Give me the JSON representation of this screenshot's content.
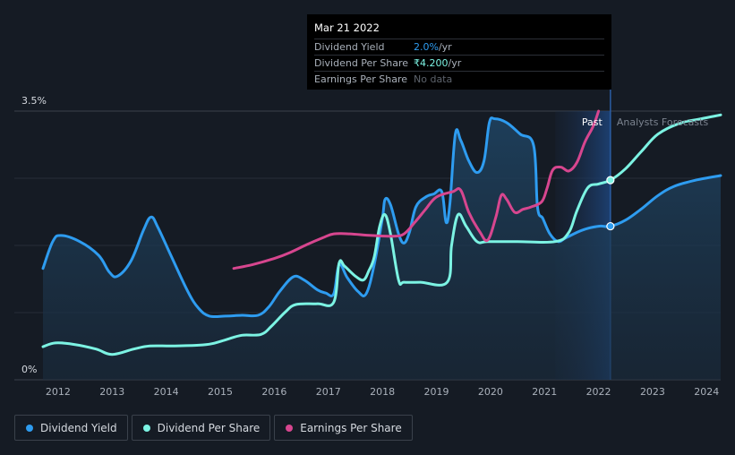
{
  "tooltip": {
    "date": "Mar 21 2022",
    "rows": [
      {
        "label": "Dividend Yield",
        "value": "2.0%",
        "unit": " /yr"
      },
      {
        "label": "Dividend Per Share",
        "value": "₹4.200",
        "unit": " /yr"
      },
      {
        "label": "Earnings Per Share",
        "value": "No data",
        "unit": ""
      }
    ]
  },
  "regions": {
    "past": "Past",
    "forecast": "Analysts Forecasts"
  },
  "colors": {
    "background": "#151b24",
    "dividend_yield": "#2e9cf0",
    "dividend_per_share": "#7cf3e3",
    "earnings_per_share": "#d7468f"
  },
  "legend": [
    {
      "label": "Dividend Yield",
      "color": "#2e9cf0"
    },
    {
      "label": "Dividend Per Share",
      "color": "#7cf3e3"
    },
    {
      "label": "Earnings Per Share",
      "color": "#d7468f"
    }
  ],
  "chart_data": {
    "type": "line",
    "ytick_labels": [
      "0%",
      "3.5%"
    ],
    "ylim": [
      0,
      3.5
    ],
    "xlim": [
      2011.72,
      2024.26
    ],
    "xticks": [
      2012,
      2013,
      2014,
      2015,
      2016,
      2017,
      2018,
      2019,
      2020,
      2021,
      2022,
      2023,
      2024
    ],
    "past_end": 2022.22,
    "forecast_shade_start": 2021.2,
    "grid": true,
    "series": [
      {
        "name": "Dividend Yield",
        "unit": "%",
        "filled": true,
        "points": [
          [
            2011.72,
            1.45
          ],
          [
            2011.9,
            1.8
          ],
          [
            2012.05,
            1.88
          ],
          [
            2012.4,
            1.8
          ],
          [
            2012.75,
            1.62
          ],
          [
            2012.95,
            1.4
          ],
          [
            2013.1,
            1.35
          ],
          [
            2013.35,
            1.55
          ],
          [
            2013.58,
            1.95
          ],
          [
            2013.72,
            2.12
          ],
          [
            2013.85,
            1.98
          ],
          [
            2014.1,
            1.6
          ],
          [
            2014.4,
            1.15
          ],
          [
            2014.6,
            0.93
          ],
          [
            2014.8,
            0.83
          ],
          [
            2015.1,
            0.83
          ],
          [
            2015.4,
            0.84
          ],
          [
            2015.7,
            0.84
          ],
          [
            2015.9,
            0.95
          ],
          [
            2016.1,
            1.15
          ],
          [
            2016.35,
            1.34
          ],
          [
            2016.55,
            1.3
          ],
          [
            2016.8,
            1.17
          ],
          [
            2016.95,
            1.13
          ],
          [
            2017.1,
            1.12
          ],
          [
            2017.2,
            1.5
          ],
          [
            2017.35,
            1.33
          ],
          [
            2017.55,
            1.15
          ],
          [
            2017.7,
            1.12
          ],
          [
            2017.85,
            1.5
          ],
          [
            2018.0,
            2.1
          ],
          [
            2018.05,
            2.35
          ],
          [
            2018.15,
            2.28
          ],
          [
            2018.3,
            1.9
          ],
          [
            2018.4,
            1.78
          ],
          [
            2018.5,
            1.92
          ],
          [
            2018.62,
            2.25
          ],
          [
            2018.8,
            2.38
          ],
          [
            2018.95,
            2.42
          ],
          [
            2019.1,
            2.45
          ],
          [
            2019.18,
            2.05
          ],
          [
            2019.25,
            2.3
          ],
          [
            2019.35,
            3.2
          ],
          [
            2019.45,
            3.12
          ],
          [
            2019.6,
            2.85
          ],
          [
            2019.75,
            2.7
          ],
          [
            2019.88,
            2.85
          ],
          [
            2019.98,
            3.35
          ],
          [
            2020.08,
            3.4
          ],
          [
            2020.3,
            3.35
          ],
          [
            2020.55,
            3.2
          ],
          [
            2020.8,
            3.05
          ],
          [
            2020.87,
            2.25
          ],
          [
            2020.97,
            2.1
          ],
          [
            2021.1,
            1.9
          ],
          [
            2021.25,
            1.8
          ],
          [
            2021.4,
            1.85
          ],
          [
            2021.7,
            1.95
          ],
          [
            2022.0,
            2.0
          ],
          [
            2022.22,
            2.0
          ],
          [
            2022.5,
            2.08
          ],
          [
            2022.8,
            2.23
          ],
          [
            2023.1,
            2.4
          ],
          [
            2023.4,
            2.52
          ],
          [
            2023.8,
            2.6
          ],
          [
            2024.26,
            2.66
          ]
        ]
      },
      {
        "name": "Dividend Per Share",
        "unit": "₹",
        "points": [
          [
            2011.72,
            0.43
          ],
          [
            2011.95,
            0.48
          ],
          [
            2012.3,
            0.46
          ],
          [
            2012.7,
            0.4
          ],
          [
            2013.0,
            0.33
          ],
          [
            2013.4,
            0.4
          ],
          [
            2013.7,
            0.44
          ],
          [
            2014.1,
            0.44
          ],
          [
            2014.6,
            0.45
          ],
          [
            2014.85,
            0.47
          ],
          [
            2015.1,
            0.52
          ],
          [
            2015.4,
            0.58
          ],
          [
            2015.75,
            0.59
          ],
          [
            2015.95,
            0.7
          ],
          [
            2016.2,
            0.88
          ],
          [
            2016.4,
            0.98
          ],
          [
            2016.8,
            0.99
          ],
          [
            2017.1,
            1.01
          ],
          [
            2017.2,
            1.52
          ],
          [
            2017.3,
            1.48
          ],
          [
            2017.5,
            1.35
          ],
          [
            2017.65,
            1.3
          ],
          [
            2017.75,
            1.42
          ],
          [
            2017.85,
            1.6
          ],
          [
            2017.95,
            2.0
          ],
          [
            2018.05,
            2.15
          ],
          [
            2018.15,
            1.9
          ],
          [
            2018.3,
            1.3
          ],
          [
            2018.4,
            1.27
          ],
          [
            2018.7,
            1.27
          ],
          [
            2019.2,
            1.27
          ],
          [
            2019.28,
            1.75
          ],
          [
            2019.4,
            2.15
          ],
          [
            2019.55,
            2.0
          ],
          [
            2019.75,
            1.8
          ],
          [
            2019.95,
            1.8
          ],
          [
            2020.5,
            1.8
          ],
          [
            2021.2,
            1.8
          ],
          [
            2021.45,
            1.92
          ],
          [
            2021.6,
            2.2
          ],
          [
            2021.8,
            2.5
          ],
          [
            2022.0,
            2.55
          ],
          [
            2022.22,
            2.6
          ],
          [
            2022.5,
            2.75
          ],
          [
            2022.8,
            2.98
          ],
          [
            2023.1,
            3.2
          ],
          [
            2023.5,
            3.34
          ],
          [
            2023.9,
            3.4
          ],
          [
            2024.26,
            3.45
          ]
        ]
      },
      {
        "name": "Earnings Per Share",
        "points": [
          [
            2015.25,
            1.45
          ],
          [
            2015.6,
            1.5
          ],
          [
            2016.0,
            1.58
          ],
          [
            2016.3,
            1.66
          ],
          [
            2016.6,
            1.76
          ],
          [
            2016.9,
            1.85
          ],
          [
            2017.1,
            1.9
          ],
          [
            2017.4,
            1.9
          ],
          [
            2017.8,
            1.88
          ],
          [
            2018.2,
            1.87
          ],
          [
            2018.4,
            1.9
          ],
          [
            2018.6,
            2.05
          ],
          [
            2018.8,
            2.22
          ],
          [
            2019.0,
            2.38
          ],
          [
            2019.3,
            2.45
          ],
          [
            2019.45,
            2.47
          ],
          [
            2019.6,
            2.18
          ],
          [
            2019.8,
            1.93
          ],
          [
            2019.95,
            1.82
          ],
          [
            2020.1,
            2.12
          ],
          [
            2020.2,
            2.4
          ],
          [
            2020.3,
            2.35
          ],
          [
            2020.45,
            2.18
          ],
          [
            2020.6,
            2.22
          ],
          [
            2020.75,
            2.25
          ],
          [
            2020.95,
            2.32
          ],
          [
            2021.05,
            2.5
          ],
          [
            2021.15,
            2.73
          ],
          [
            2021.3,
            2.77
          ],
          [
            2021.45,
            2.72
          ],
          [
            2021.6,
            2.83
          ],
          [
            2021.75,
            3.1
          ],
          [
            2021.9,
            3.3
          ],
          [
            2022.0,
            3.5
          ]
        ]
      }
    ],
    "tooltip_x": 2022.22,
    "tooltip_markers": [
      "Dividend Yield",
      "Dividend Per Share"
    ]
  }
}
